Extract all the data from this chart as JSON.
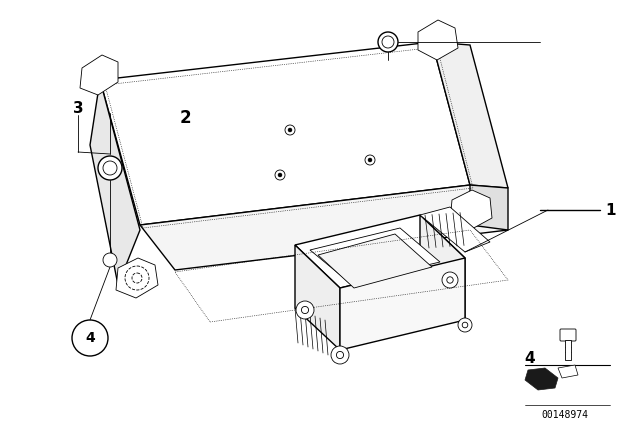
{
  "bg_color": "#ffffff",
  "fig_width": 6.4,
  "fig_height": 4.48,
  "dpi": 100,
  "label_1": "1",
  "label_2": "2",
  "label_3": "3",
  "label_4": "4",
  "part_number": "00148974",
  "lc": "#000000",
  "lw": 1.0,
  "tlw": 0.6,
  "dotlw": 0.5
}
